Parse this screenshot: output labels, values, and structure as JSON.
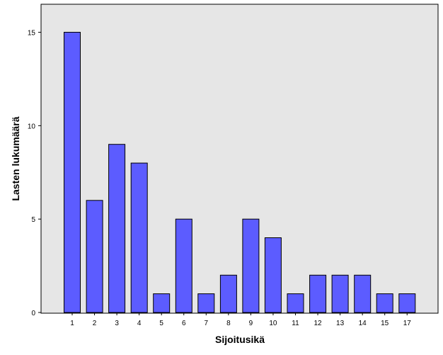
{
  "chart_data": {
    "type": "bar",
    "title": "",
    "xlabel": "Sijoitusikä",
    "ylabel": "Lasten lukumäärä",
    "categories": [
      "1",
      "2",
      "3",
      "4",
      "5",
      "6",
      "7",
      "8",
      "9",
      "10",
      "11",
      "12",
      "13",
      "14",
      "15",
      "17"
    ],
    "values": [
      15,
      6,
      9,
      8,
      1,
      5,
      1,
      2,
      5,
      4,
      1,
      2,
      2,
      2,
      1,
      1
    ],
    "ylim": [
      0,
      16.5
    ],
    "yticks": [
      0,
      5,
      10,
      15
    ],
    "grid": false,
    "legend": "none",
    "colors": {
      "bar": "#5c5cff",
      "bar_border": "#000000",
      "plot_background": "#e6e6e6",
      "page_background": "#ffffff"
    }
  }
}
